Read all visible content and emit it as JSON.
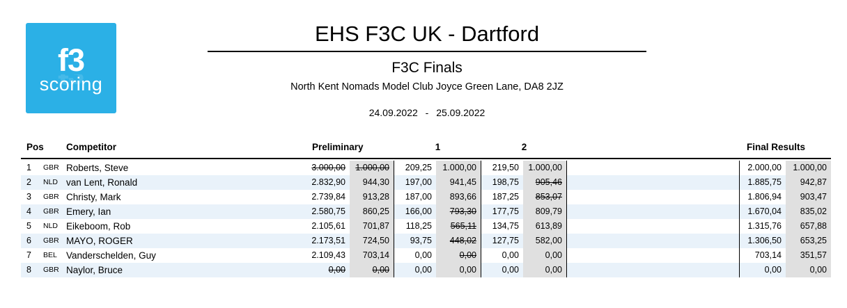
{
  "colors": {
    "logo_bg": "#2bb0e6",
    "stripe": "#e9f2fa",
    "points_bg": "#e0e0e0",
    "text": "#000000"
  },
  "logo": {
    "line1": "f3",
    "line2": "scoring"
  },
  "header": {
    "title": "EHS F3C UK - Dartford",
    "subtitle": "F3C Finals",
    "location": "North Kent Nomads Model Club Joyce Green Lane, DA8 2JZ",
    "dates": "24.09.2022 - 25.09.2022"
  },
  "table": {
    "columns": {
      "pos": "Pos",
      "competitor": "Competitor",
      "preliminary": "Preliminary",
      "round1": "1",
      "round2": "2",
      "final": "Final Results"
    },
    "rows": [
      {
        "pos": "1",
        "country": "GBR",
        "name": "Roberts, Steve",
        "p_score": "3.000,00",
        "p_pts": "1.000,00",
        "r1_score": "209,25",
        "r1_pts": "1.000,00",
        "r2_score": "219,50",
        "r2_pts": "1.000,00",
        "f_score": "2.000,00",
        "f_pts": "1.000,00",
        "struck": [
          "p_score",
          "p_pts"
        ]
      },
      {
        "pos": "2",
        "country": "NLD",
        "name": "van Lent, Ronald",
        "p_score": "2.832,90",
        "p_pts": "944,30",
        "r1_score": "197,00",
        "r1_pts": "941,45",
        "r2_score": "198,75",
        "r2_pts": "905,46",
        "f_score": "1.885,75",
        "f_pts": "942,87",
        "struck": [
          "r2_pts"
        ]
      },
      {
        "pos": "3",
        "country": "GBR",
        "name": "Christy, Mark",
        "p_score": "2.739,84",
        "p_pts": "913,28",
        "r1_score": "187,00",
        "r1_pts": "893,66",
        "r2_score": "187,25",
        "r2_pts": "853,07",
        "f_score": "1.806,94",
        "f_pts": "903,47",
        "struck": [
          "r2_pts"
        ]
      },
      {
        "pos": "4",
        "country": "GBR",
        "name": "Emery, Ian",
        "p_score": "2.580,75",
        "p_pts": "860,25",
        "r1_score": "166,00",
        "r1_pts": "793,30",
        "r2_score": "177,75",
        "r2_pts": "809,79",
        "f_score": "1.670,04",
        "f_pts": "835,02",
        "struck": [
          "r1_pts"
        ]
      },
      {
        "pos": "5",
        "country": "NLD",
        "name": "Eikeboom, Rob",
        "p_score": "2.105,61",
        "p_pts": "701,87",
        "r1_score": "118,25",
        "r1_pts": "565,11",
        "r2_score": "134,75",
        "r2_pts": "613,89",
        "f_score": "1.315,76",
        "f_pts": "657,88",
        "struck": [
          "r1_pts"
        ]
      },
      {
        "pos": "6",
        "country": "GBR",
        "name": "MAYO, ROGER",
        "p_score": "2.173,51",
        "p_pts": "724,50",
        "r1_score": "93,75",
        "r1_pts": "448,02",
        "r2_score": "127,75",
        "r2_pts": "582,00",
        "f_score": "1.306,50",
        "f_pts": "653,25",
        "struck": [
          "r1_pts"
        ]
      },
      {
        "pos": "7",
        "country": "BEL",
        "name": "Vanderschelden, Guy",
        "p_score": "2.109,43",
        "p_pts": "703,14",
        "r1_score": "0,00",
        "r1_pts": "0,00",
        "r2_score": "0,00",
        "r2_pts": "0,00",
        "f_score": "703,14",
        "f_pts": "351,57",
        "struck": [
          "r1_pts"
        ]
      },
      {
        "pos": "8",
        "country": "GBR",
        "name": "Naylor, Bruce",
        "p_score": "0,00",
        "p_pts": "0,00",
        "r1_score": "0,00",
        "r1_pts": "0,00",
        "r2_score": "0,00",
        "r2_pts": "0,00",
        "f_score": "0,00",
        "f_pts": "0,00",
        "struck": [
          "p_score",
          "p_pts"
        ]
      }
    ]
  }
}
